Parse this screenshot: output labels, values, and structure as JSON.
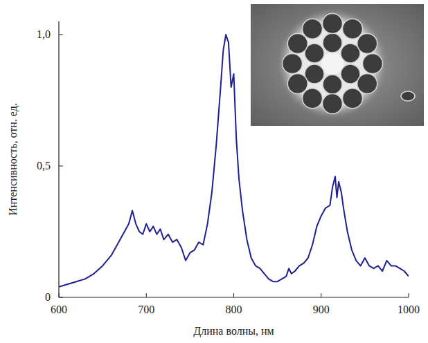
{
  "chart_data": {
    "type": "line",
    "x_label": "Длина волны, нм",
    "y_label": "Интенсивность, отн. ед.",
    "color": "#1f1f8f",
    "grid": false,
    "xlim": [
      600,
      1000
    ],
    "xticks": [
      600,
      700,
      800,
      900,
      1000
    ],
    "ylim": [
      0,
      1.05
    ],
    "yticks": [
      0,
      {
        "value": 0.5,
        "label": "0,5"
      },
      {
        "value": 1,
        "label": "1,0"
      }
    ],
    "x": [
      600,
      610,
      620,
      630,
      640,
      650,
      660,
      670,
      675,
      680,
      684,
      688,
      692,
      696,
      700,
      704,
      708,
      712,
      716,
      720,
      725,
      730,
      735,
      740,
      745,
      750,
      755,
      760,
      765,
      770,
      775,
      780,
      785,
      788,
      791,
      794,
      797,
      800,
      803,
      806,
      810,
      815,
      820,
      825,
      830,
      835,
      840,
      845,
      850,
      855,
      860,
      863,
      866,
      870,
      875,
      880,
      885,
      890,
      895,
      900,
      905,
      910,
      913,
      916,
      918,
      920,
      923,
      926,
      930,
      935,
      940,
      945,
      950,
      955,
      960,
      965,
      970,
      975,
      980,
      985,
      990,
      995,
      1000
    ],
    "values": [
      0.04,
      0.05,
      0.06,
      0.07,
      0.09,
      0.12,
      0.16,
      0.22,
      0.25,
      0.28,
      0.33,
      0.28,
      0.25,
      0.24,
      0.28,
      0.25,
      0.27,
      0.24,
      0.26,
      0.22,
      0.24,
      0.21,
      0.22,
      0.19,
      0.14,
      0.17,
      0.18,
      0.21,
      0.2,
      0.28,
      0.4,
      0.58,
      0.8,
      0.94,
      1.0,
      0.97,
      0.8,
      0.85,
      0.6,
      0.45,
      0.33,
      0.22,
      0.15,
      0.12,
      0.11,
      0.09,
      0.07,
      0.06,
      0.06,
      0.07,
      0.08,
      0.11,
      0.09,
      0.1,
      0.12,
      0.13,
      0.15,
      0.2,
      0.27,
      0.31,
      0.34,
      0.35,
      0.42,
      0.46,
      0.38,
      0.44,
      0.4,
      0.33,
      0.25,
      0.18,
      0.14,
      0.12,
      0.15,
      0.12,
      0.11,
      0.12,
      0.1,
      0.14,
      0.12,
      0.12,
      0.11,
      0.1,
      0.08
    ]
  }
}
